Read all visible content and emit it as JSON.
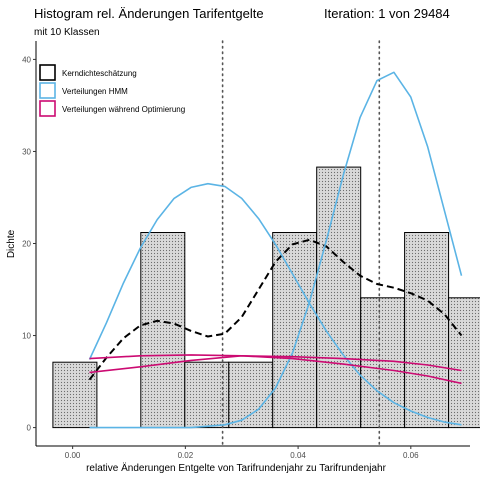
{
  "header": {
    "title": "Histogram rel. Änderungen Tarifentgelte",
    "subtitle": "mit 10 Klassen",
    "iteration": "Iteration:  1 von 29484"
  },
  "chart_data": {
    "type": "bar",
    "xlabel": "relative Änderungen Entgelte von Tarifrundenjahr zu Tarifrundenjahr",
    "ylabel": "Dichte",
    "xlim": [
      -0.0065,
      0.0705
    ],
    "ylim": [
      -2,
      42
    ],
    "x_ticks": [
      0.0,
      0.02,
      0.04,
      0.06
    ],
    "x_tick_labels": [
      "0.00",
      "0.02",
      "0.04",
      "0.06"
    ],
    "y_ticks": [
      0,
      10,
      20,
      30,
      40
    ],
    "y_tick_labels": [
      "0",
      "10",
      "20",
      "30",
      "40"
    ],
    "histogram": {
      "bins": [
        {
          "x0": -0.0035,
          "x1": 0.0043,
          "density": 7.1
        },
        {
          "x0": 0.0043,
          "x1": 0.0121,
          "density": 0
        },
        {
          "x0": 0.0121,
          "x1": 0.0199,
          "density": 21.2
        },
        {
          "x0": 0.0199,
          "x1": 0.0277,
          "density": 7.1
        },
        {
          "x0": 0.0277,
          "x1": 0.0355,
          "density": 7.1
        },
        {
          "x0": 0.0355,
          "x1": 0.0433,
          "density": 21.2
        },
        {
          "x0": 0.0433,
          "x1": 0.0511,
          "density": 28.3
        },
        {
          "x0": 0.0511,
          "x1": 0.0589,
          "density": 14.1
        },
        {
          "x0": 0.0589,
          "x1": 0.0667,
          "density": 21.2
        },
        {
          "x0": 0.0667,
          "x1": 0.0745,
          "density": 14.1
        }
      ]
    },
    "vlines": [
      0.0266,
      0.0544
    ],
    "series": [
      {
        "name": "Kerndichteschätzung",
        "color": "#000000",
        "style": "dashed",
        "x": [
          0.003,
          0.006,
          0.009,
          0.012,
          0.015,
          0.018,
          0.021,
          0.024,
          0.027,
          0.03,
          0.033,
          0.036,
          0.039,
          0.042,
          0.045,
          0.048,
          0.051,
          0.054,
          0.057,
          0.06,
          0.063,
          0.066,
          0.069
        ],
        "y": [
          5.2,
          7.6,
          9.7,
          11.1,
          11.6,
          11.3,
          10.5,
          9.9,
          10.2,
          12.0,
          15.0,
          18.0,
          19.9,
          20.4,
          19.7,
          18.0,
          16.5,
          15.6,
          15.2,
          14.6,
          13.8,
          12.3,
          10.0
        ]
      },
      {
        "name": "Verteilungen HMM",
        "color": "#5bb4e5",
        "style": "solid",
        "components": [
          {
            "x": [
              0.003,
              0.006,
              0.009,
              0.012,
              0.015,
              0.018,
              0.021,
              0.024,
              0.027,
              0.03,
              0.033,
              0.036,
              0.039,
              0.042,
              0.045,
              0.048,
              0.051,
              0.054,
              0.057,
              0.06,
              0.063,
              0.066,
              0.069
            ],
            "y": [
              7.4,
              11.4,
              15.7,
              19.5,
              22.6,
              24.9,
              26.1,
              26.5,
              26.2,
              24.9,
              22.7,
              19.9,
              16.7,
              13.5,
              10.5,
              7.9,
              5.7,
              4.0,
              2.7,
              1.8,
              1.1,
              0.6,
              0.3
            ]
          },
          {
            "x": [
              0.003,
              0.012,
              0.021,
              0.027,
              0.03,
              0.033,
              0.036,
              0.039,
              0.042,
              0.045,
              0.048,
              0.051,
              0.054,
              0.057,
              0.06,
              0.063,
              0.066,
              0.069
            ],
            "y": [
              0.0,
              0.0,
              0.0,
              0.3,
              0.8,
              2.0,
              4.3,
              8.1,
              13.6,
              20.3,
              27.4,
              33.7,
              37.7,
              38.6,
              35.9,
              30.5,
              23.5,
              16.5
            ]
          }
        ]
      },
      {
        "name": "Verteilungen während Optimierung",
        "color": "#cc0a72",
        "style": "solid",
        "components": [
          {
            "x": [
              0.003,
              0.012,
              0.021,
              0.03,
              0.039,
              0.048,
              0.057,
              0.063,
              0.069
            ],
            "y": [
              6.0,
              6.6,
              7.3,
              7.8,
              7.5,
              6.9,
              6.2,
              5.6,
              4.8
            ]
          },
          {
            "x": [
              0.003,
              0.012,
              0.021,
              0.03,
              0.039,
              0.048,
              0.057,
              0.063,
              0.069
            ],
            "y": [
              7.5,
              7.8,
              7.9,
              7.8,
              7.7,
              7.5,
              7.2,
              6.8,
              6.2
            ]
          }
        ]
      }
    ],
    "legend_position": "top-left",
    "grid": false
  }
}
